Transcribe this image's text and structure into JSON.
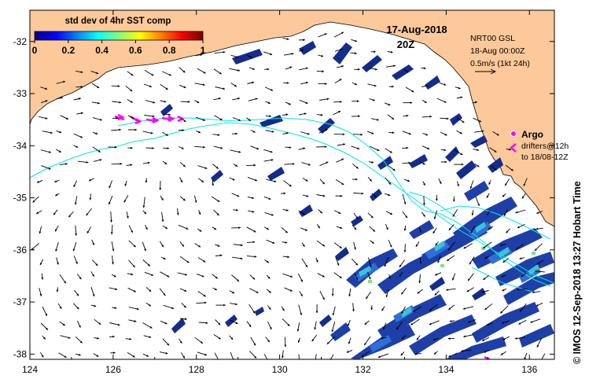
{
  "figure": {
    "date_label": "17-Aug-2018",
    "time_label": "20Z",
    "colorbar": {
      "title": "std dev of 4hr SST comp",
      "ticks": [
        "0",
        "0.2",
        "0.4",
        "0.6",
        "0.8",
        "1"
      ],
      "range": [
        0,
        1
      ]
    },
    "source_info": [
      "NRT00 GSL",
      "18-Aug 00:00Z",
      "0.5m/s (1kt 24h)"
    ],
    "legend": {
      "argo_label": "Argo",
      "drifter_lines": [
        "drifters@12h",
        "to 18/08-12Z"
      ]
    },
    "credit": "© IMOS 12-Sep-2018 13:27 Hobart Time",
    "axes": {
      "x_ticks": [
        "124",
        "126",
        "128",
        "130",
        "132",
        "134",
        "136"
      ],
      "y_ticks": [
        "-32",
        "-33",
        "-34",
        "-35",
        "-36",
        "-37",
        "-38"
      ],
      "lon_range": [
        124,
        136.6
      ],
      "lat_range": [
        -38.1,
        -31.4
      ]
    },
    "colors": {
      "land": "#FDC99A",
      "patch_dark": "#142C8C",
      "patch_mid": "#2F6FD8",
      "patch_light": "#39C3D8",
      "track": "#00E8E8",
      "drifter": "#FF00FF"
    }
  }
}
